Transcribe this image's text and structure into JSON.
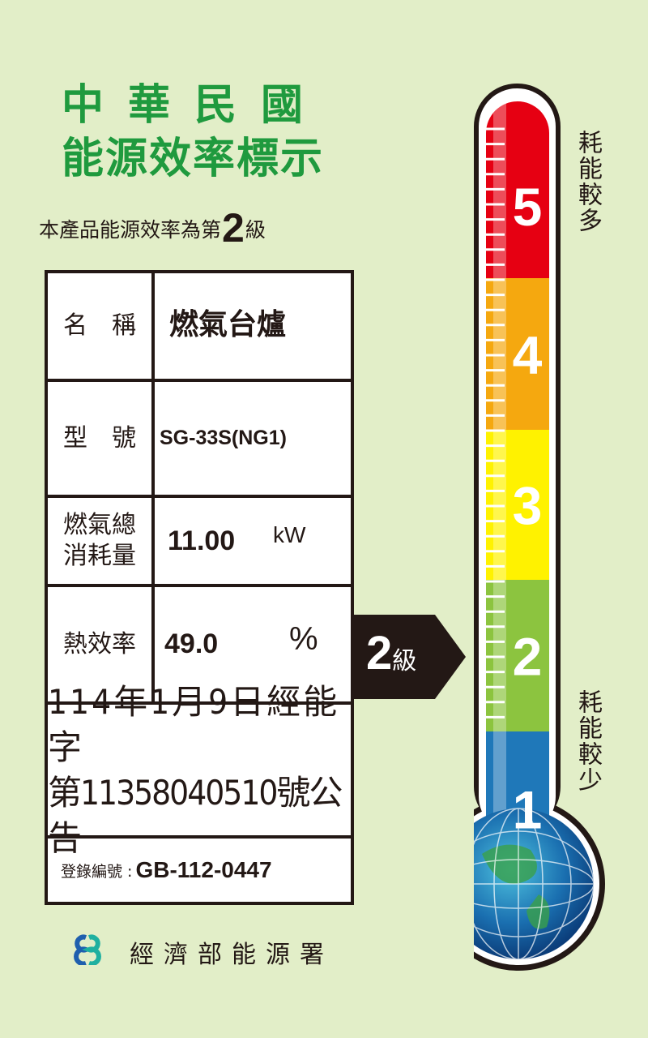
{
  "header": {
    "line1": "中華民國",
    "line2": "能源效率標示",
    "statement_prefix": "本產品能源效率為第",
    "grade": "2",
    "statement_suffix": "級"
  },
  "table": {
    "name_label": "名　稱",
    "name_value": "燃氣台爐",
    "model_label": "型　號",
    "model_value": "SG-33S(NG1)",
    "consumption_label_1": "燃氣總",
    "consumption_label_2": "消耗量",
    "consumption_value": "11.00",
    "consumption_unit": "kW",
    "efficiency_label": "熱效率",
    "efficiency_value": "49.0",
    "efficiency_unit": "%",
    "announcement_line1": "114年1月9日經能字",
    "announcement_line2": "第11358040510號公告",
    "registration_label": "登錄編號 :",
    "registration_value": "GB-112-0447"
  },
  "pointer": {
    "grade": "2",
    "unit": "級"
  },
  "thermometer": {
    "levels": [
      "5",
      "4",
      "3",
      "2",
      "1"
    ],
    "colors": [
      "#e60012",
      "#f5a80f",
      "#fff200",
      "#8cc43f",
      "#1f78b9"
    ],
    "top_label": "耗能較多",
    "bottom_label": "耗能較少",
    "current_level": 2
  },
  "footer": {
    "agency": "經濟部能源署"
  }
}
